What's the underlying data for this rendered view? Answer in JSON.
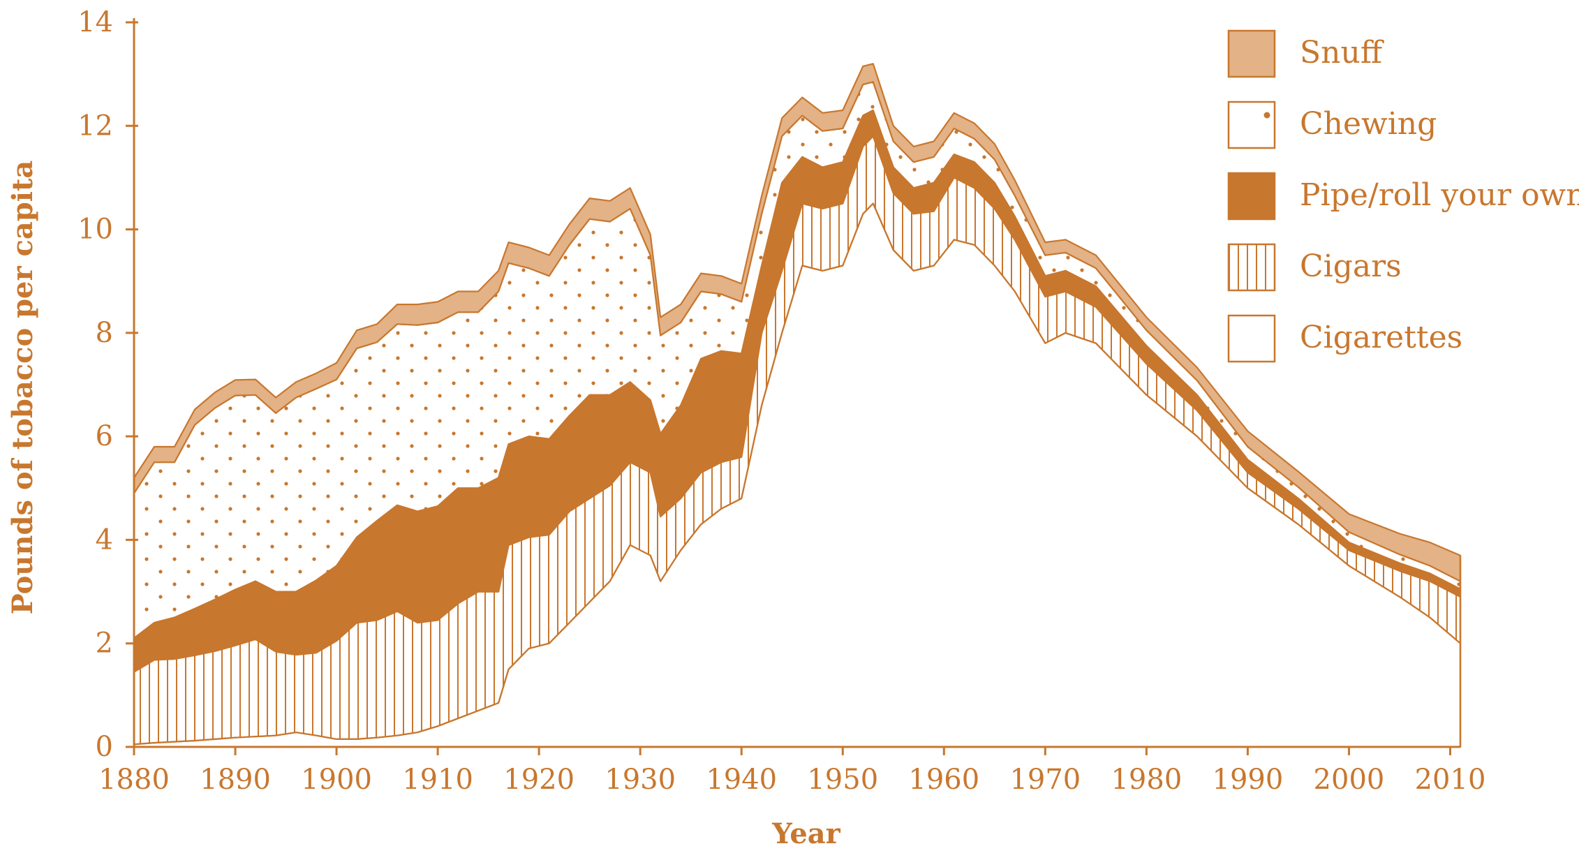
{
  "colors": {
    "axis": "#c8772e",
    "snuff": "#e3b286",
    "chewing_dot": "#c8772e",
    "pipe": "#c8772e",
    "cigars_line": "#c8772e",
    "cigarettes": "#ffffff"
  },
  "chart_data": {
    "type": "area",
    "stacked": true,
    "xlabel": "Year",
    "ylabel": "Pounds of tobacco per capita",
    "xlim": [
      1880,
      2011
    ],
    "ylim": [
      0,
      14
    ],
    "xticks": [
      "1880",
      "1890",
      "1900",
      "1910",
      "1920",
      "1930",
      "1940",
      "1950",
      "1960",
      "1970",
      "1980",
      "1990",
      "2000",
      "2010"
    ],
    "yticks": [
      "0",
      "2",
      "4",
      "6",
      "8",
      "10",
      "12",
      "14"
    ],
    "legend_position": "top-right",
    "legend": [
      "Snuff",
      "Chewing",
      "Pipe/roll your own",
      "Cigars",
      "Cigarettes"
    ],
    "x": [
      1880,
      1882,
      1884,
      1886,
      1888,
      1890,
      1892,
      1894,
      1896,
      1898,
      1900,
      1902,
      1904,
      1906,
      1908,
      1910,
      1912,
      1914,
      1916,
      1917,
      1919,
      1921,
      1923,
      1925,
      1927,
      1929,
      1931,
      1932,
      1934,
      1936,
      1938,
      1940,
      1942,
      1944,
      1946,
      1948,
      1950,
      1952,
      1953,
      1955,
      1957,
      1959,
      1961,
      1963,
      1965,
      1967,
      1970,
      1972,
      1975,
      1980,
      1985,
      1990,
      1995,
      2000,
      2005,
      2008,
      2011
    ],
    "series": [
      {
        "name": "Cigarettes",
        "values": [
          0.05,
          0.08,
          0.1,
          0.12,
          0.15,
          0.18,
          0.2,
          0.22,
          0.28,
          0.22,
          0.15,
          0.15,
          0.18,
          0.22,
          0.28,
          0.4,
          0.55,
          0.7,
          0.85,
          1.5,
          1.9,
          2.0,
          2.4,
          2.8,
          3.2,
          3.9,
          3.7,
          3.2,
          3.8,
          4.3,
          4.6,
          4.8,
          6.6,
          8.0,
          9.3,
          9.2,
          9.3,
          10.3,
          10.5,
          9.6,
          9.2,
          9.3,
          9.8,
          9.7,
          9.3,
          8.8,
          7.8,
          8.0,
          7.8,
          6.8,
          6.0,
          5.0,
          4.3,
          3.5,
          2.9,
          2.5,
          2.0
        ]
      },
      {
        "name": "Cigars",
        "values": [
          1.4,
          1.6,
          1.6,
          1.65,
          1.7,
          1.78,
          1.88,
          1.62,
          1.5,
          1.6,
          1.9,
          2.25,
          2.27,
          2.4,
          2.12,
          2.05,
          2.22,
          2.3,
          2.15,
          2.4,
          2.15,
          2.1,
          2.15,
          2.0,
          1.85,
          1.6,
          1.6,
          1.25,
          1.0,
          1.0,
          0.9,
          0.8,
          1.4,
          1.2,
          1.2,
          1.2,
          1.2,
          1.3,
          1.3,
          1.1,
          1.1,
          1.05,
          1.2,
          1.1,
          1.1,
          1.0,
          0.9,
          0.8,
          0.7,
          0.6,
          0.5,
          0.3,
          0.3,
          0.3,
          0.5,
          0.7,
          0.9
        ]
      },
      {
        "name": "Pipe/roll your own",
        "values": [
          0.65,
          0.72,
          0.8,
          0.9,
          1.0,
          1.08,
          1.12,
          1.16,
          1.22,
          1.4,
          1.45,
          1.65,
          1.92,
          2.05,
          2.15,
          2.2,
          2.23,
          2.0,
          2.2,
          1.95,
          1.95,
          1.85,
          1.85,
          2.0,
          1.75,
          1.55,
          1.4,
          1.6,
          1.8,
          2.2,
          2.15,
          2.0,
          1.3,
          1.7,
          0.9,
          0.8,
          0.8,
          0.6,
          0.5,
          0.5,
          0.5,
          0.55,
          0.45,
          0.5,
          0.5,
          0.45,
          0.4,
          0.4,
          0.4,
          0.35,
          0.3,
          0.25,
          0.2,
          0.15,
          0.15,
          0.15,
          0.15
        ]
      },
      {
        "name": "Chewing",
        "values": [
          2.8,
          3.1,
          3.0,
          3.55,
          3.7,
          3.75,
          3.6,
          3.45,
          3.75,
          3.7,
          3.6,
          3.65,
          3.45,
          3.5,
          3.6,
          3.55,
          3.4,
          3.4,
          3.6,
          3.5,
          3.25,
          3.15,
          3.3,
          3.4,
          3.35,
          3.35,
          2.8,
          1.9,
          1.6,
          1.3,
          1.1,
          1.0,
          1.0,
          0.9,
          0.8,
          0.7,
          0.65,
          0.6,
          0.55,
          0.5,
          0.5,
          0.5,
          0.5,
          0.45,
          0.45,
          0.4,
          0.4,
          0.35,
          0.35,
          0.3,
          0.28,
          0.25,
          0.22,
          0.2,
          0.17,
          0.15,
          0.15
        ]
      },
      {
        "name": "Snuff",
        "values": [
          0.3,
          0.3,
          0.3,
          0.3,
          0.3,
          0.3,
          0.3,
          0.3,
          0.3,
          0.3,
          0.32,
          0.35,
          0.35,
          0.38,
          0.4,
          0.4,
          0.4,
          0.4,
          0.4,
          0.4,
          0.4,
          0.4,
          0.4,
          0.4,
          0.4,
          0.4,
          0.4,
          0.35,
          0.35,
          0.35,
          0.35,
          0.35,
          0.35,
          0.35,
          0.35,
          0.35,
          0.35,
          0.35,
          0.35,
          0.3,
          0.3,
          0.3,
          0.3,
          0.3,
          0.3,
          0.3,
          0.25,
          0.25,
          0.25,
          0.25,
          0.25,
          0.3,
          0.3,
          0.35,
          0.4,
          0.45,
          0.5
        ]
      }
    ]
  }
}
